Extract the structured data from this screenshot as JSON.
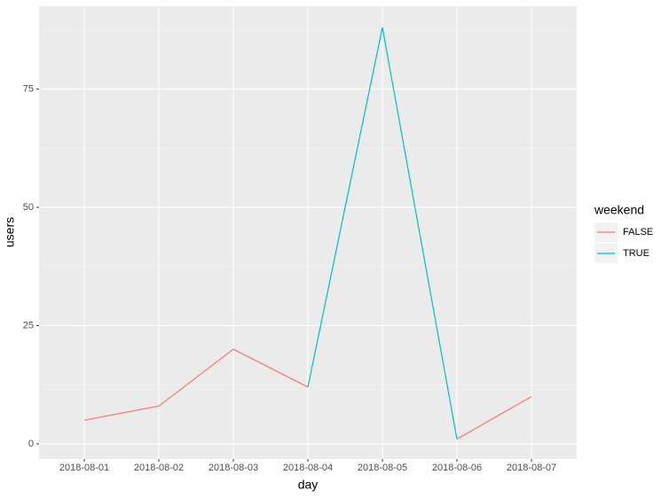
{
  "chart_data": {
    "type": "line",
    "xlabel": "day",
    "ylabel": "users",
    "legend_title": "weekend",
    "legend": "right",
    "grid": true,
    "categories": [
      "2018-08-01",
      "2018-08-02",
      "2018-08-03",
      "2018-08-04",
      "2018-08-05",
      "2018-08-06",
      "2018-08-07"
    ],
    "series": [
      {
        "name": "FALSE",
        "color": "#F8766D",
        "values": [
          5,
          8,
          20,
          12,
          null,
          1,
          10
        ]
      },
      {
        "name": "TRUE",
        "color": "#00BFC4",
        "values": [
          null,
          null,
          null,
          12,
          88,
          1,
          null
        ]
      }
    ],
    "ylim": [
      -3.2,
      92.5
    ],
    "yticks": [
      0,
      25,
      50,
      75
    ]
  }
}
